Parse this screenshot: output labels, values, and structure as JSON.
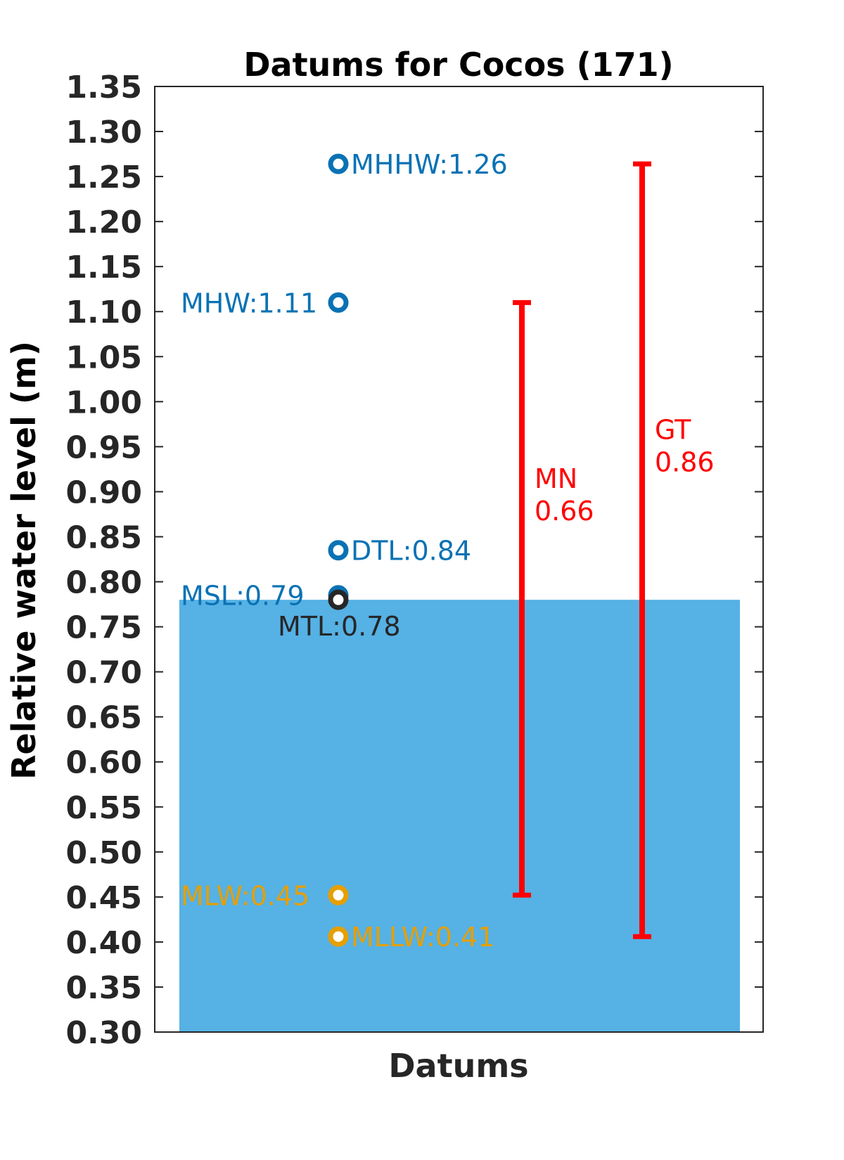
{
  "chart_data": {
    "type": "bar",
    "title": "Datums for Cocos (171)",
    "xlabel": "Datums",
    "ylabel": "Relative water level (m)",
    "ylim": [
      0.3,
      1.35
    ],
    "y_ticks": [
      "1.35",
      "1.30",
      "1.25",
      "1.20",
      "1.15",
      "1.10",
      "1.05",
      "1.00",
      "0.95",
      "0.90",
      "0.85",
      "0.80",
      "0.75",
      "0.70",
      "0.65",
      "0.60",
      "0.55",
      "0.50",
      "0.45",
      "0.40",
      "0.35",
      "0.30"
    ],
    "grid": false,
    "colors": {
      "bar": "#56b1e4",
      "high": "#0a72b4",
      "mid": "#262626",
      "low": "#e69f00",
      "range": "#ff0000"
    },
    "bar": {
      "value": 0.78
    },
    "datums": [
      {
        "label": "MHHW:1.26",
        "value": 1.264,
        "group": "high",
        "label_side": "right"
      },
      {
        "label": "MHW:1.11",
        "value": 1.11,
        "group": "high",
        "label_side": "left"
      },
      {
        "label": "DTL:0.84",
        "value": 0.835,
        "group": "high",
        "label_side": "right"
      },
      {
        "label": "MSL:0.79",
        "value": 0.785,
        "group": "high",
        "label_side": "left"
      },
      {
        "label": "MTL:0.78",
        "value": 0.78,
        "group": "mid",
        "label_side": "below"
      },
      {
        "label": "MLW:0.45",
        "value": 0.452,
        "group": "low",
        "label_side": "left"
      },
      {
        "label": "MLLW:0.41",
        "value": 0.406,
        "group": "low",
        "label_side": "right"
      }
    ],
    "ranges": [
      {
        "name": "MN",
        "value_label": "0.66",
        "low": 0.452,
        "high": 1.11
      },
      {
        "name": "GT",
        "value_label": "0.86",
        "low": 0.406,
        "high": 1.264
      }
    ]
  }
}
